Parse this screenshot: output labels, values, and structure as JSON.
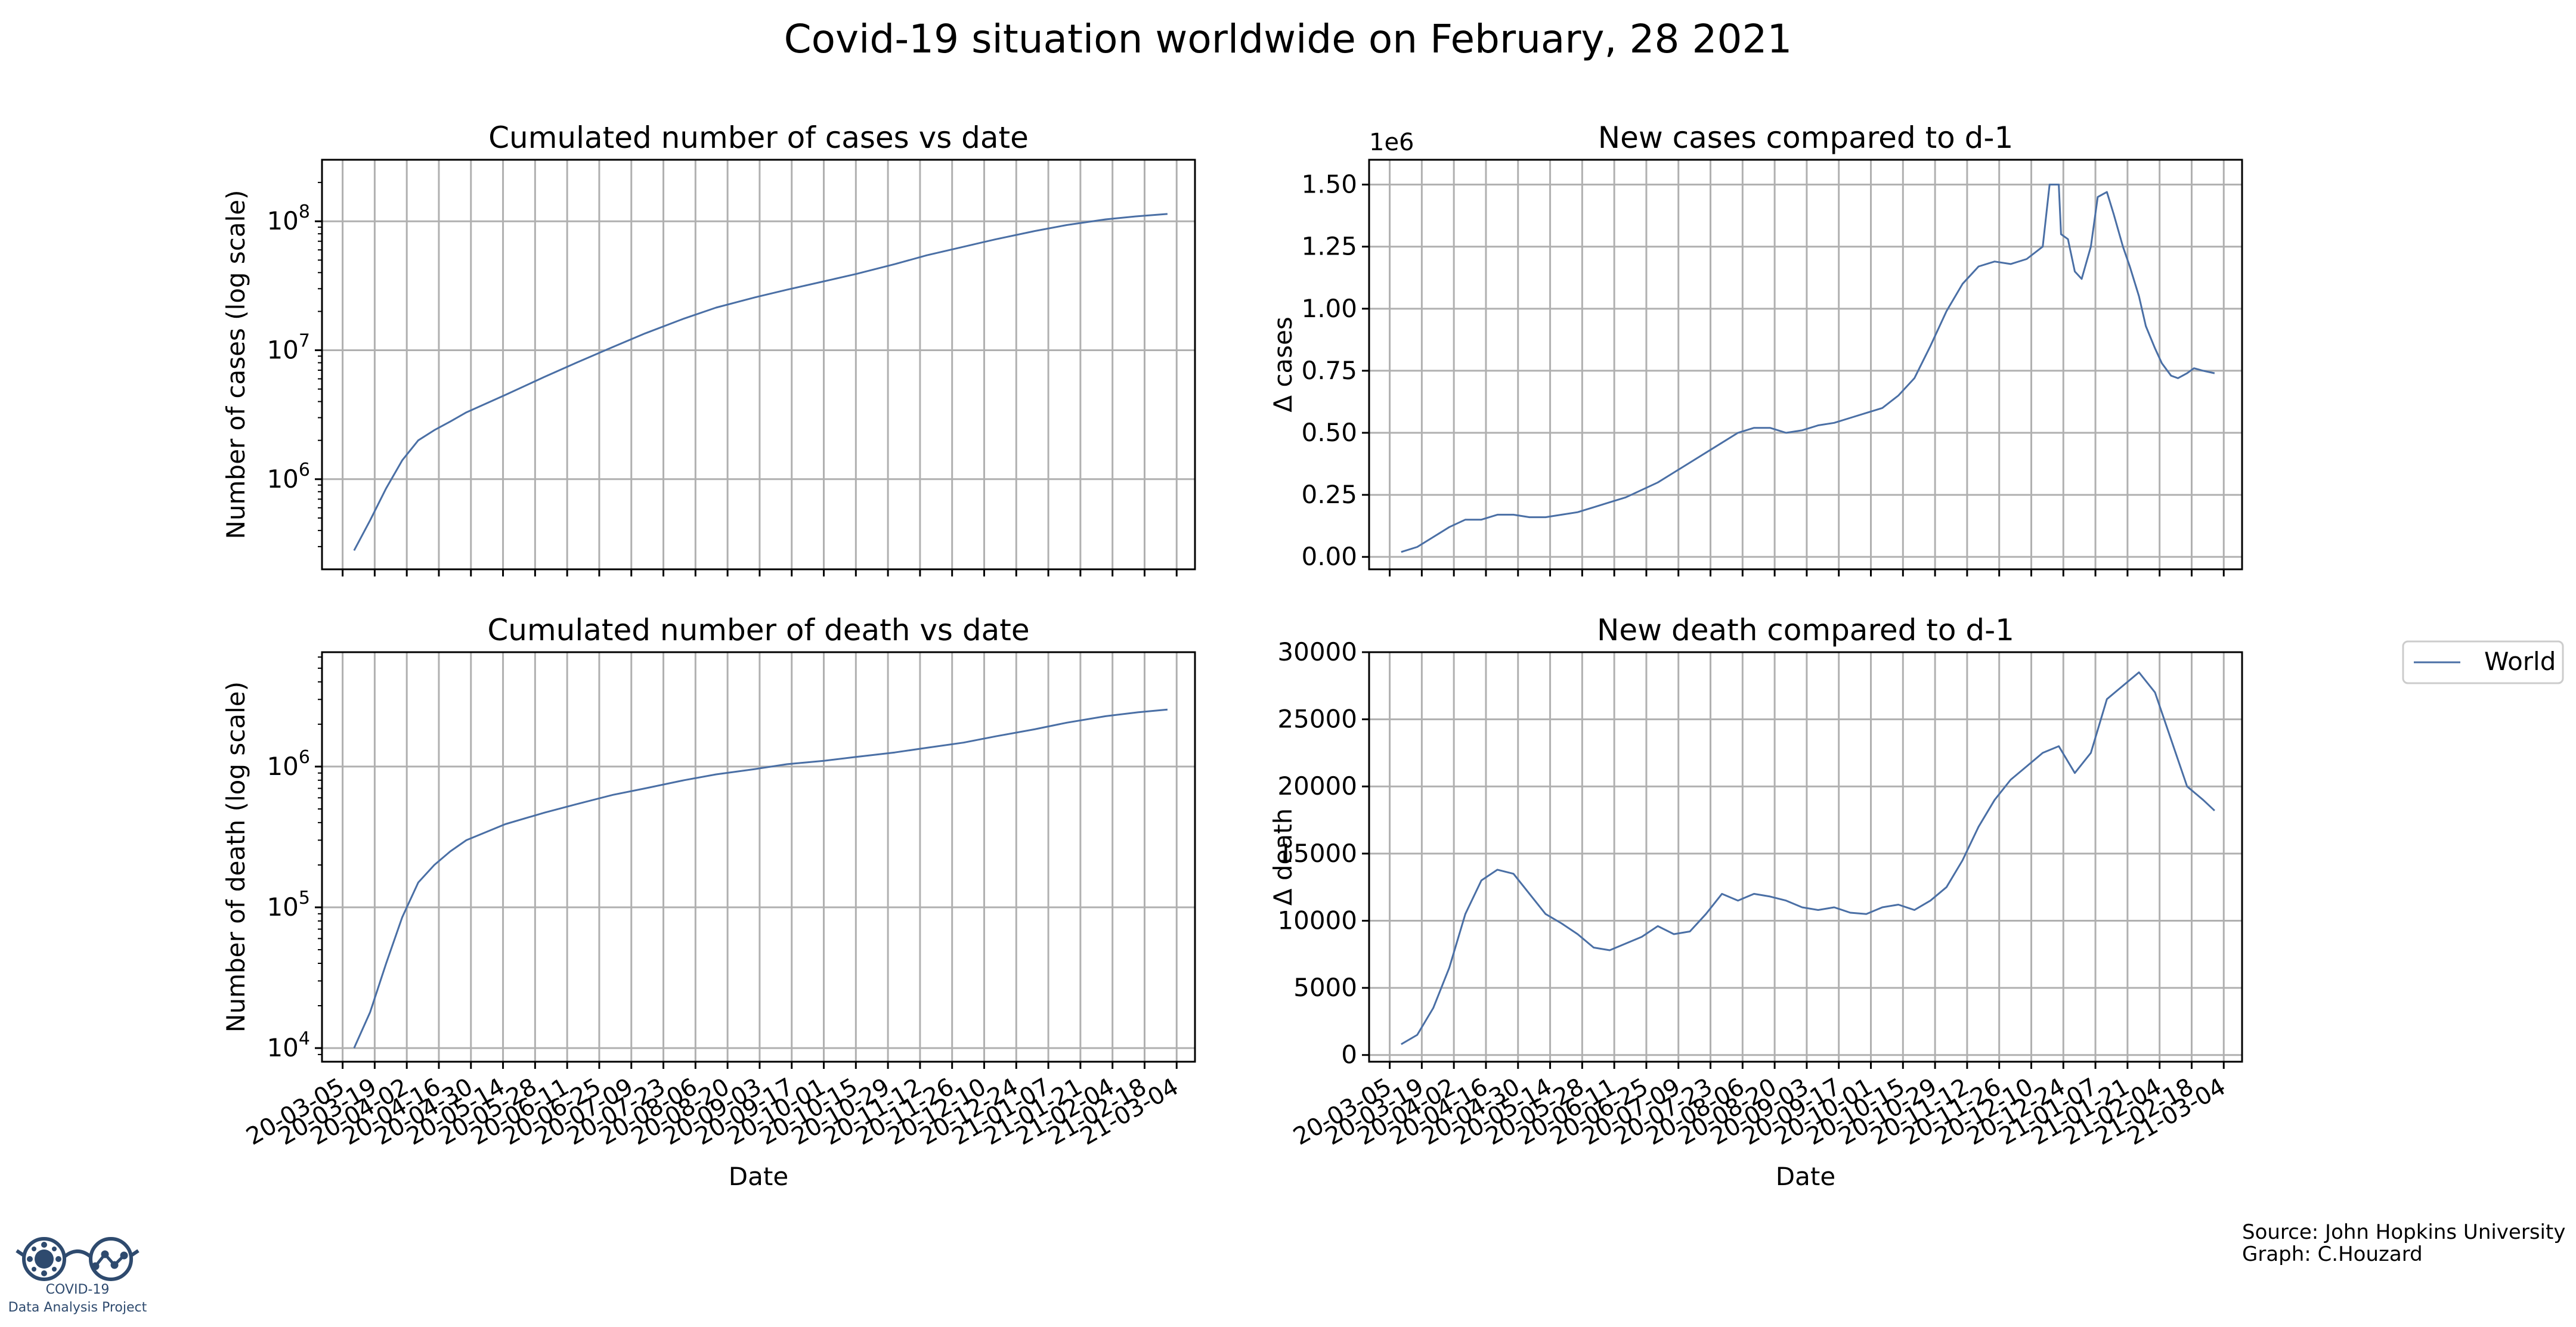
{
  "title": "Covid-19 situation worldwide on February, 28 2021",
  "legend": {
    "placement": "right-middle",
    "entries": [
      "World"
    ]
  },
  "colors": {
    "series": "#4a6fa5",
    "grid": "#b0b0b0",
    "axes": "#000000"
  },
  "source": {
    "line1": "Source: John Hopkins University",
    "line2": "Graph: C.Houzard"
  },
  "logo": {
    "line1": "COVID-19",
    "line2": "Data Analysis Project",
    "color": "#2e4a6e"
  },
  "date_ticks": [
    "20-03-05",
    "20-03-19",
    "20-04-02",
    "20-04-16",
    "20-04-30",
    "20-05-14",
    "20-05-28",
    "20-06-11",
    "20-06-25",
    "20-07-09",
    "20-07-23",
    "20-08-06",
    "20-08-20",
    "20-09-03",
    "20-09-17",
    "20-10-01",
    "20-10-15",
    "20-10-29",
    "20-11-12",
    "20-11-26",
    "20-12-10",
    "20-12-24",
    "21-01-07",
    "21-01-21",
    "21-02-04",
    "21-02-18",
    "21-03-04"
  ],
  "chart_data": [
    {
      "id": "cum-cases",
      "type": "line",
      "title": "Cumulated number of cases vs date",
      "xlabel": "",
      "ylabel": "Number of cases (log scale)",
      "yscale": "log",
      "ylim": [
        200000,
        300000000
      ],
      "yticks": [
        1000000,
        10000000,
        100000000
      ],
      "ytick_labels": [
        "10^6",
        "10^7",
        "10^8"
      ],
      "grid": true,
      "series": [
        {
          "name": "World",
          "x": [
            "20-03-10",
            "20-03-17",
            "20-03-24",
            "20-03-31",
            "20-04-07",
            "20-04-14",
            "20-04-21",
            "20-04-28",
            "20-05-15",
            "20-06-01",
            "20-06-15",
            "20-07-01",
            "20-07-15",
            "20-08-01",
            "20-08-15",
            "20-09-01",
            "20-09-15",
            "20-10-01",
            "20-10-15",
            "20-11-01",
            "20-11-15",
            "20-12-01",
            "20-12-15",
            "21-01-01",
            "21-01-15",
            "21-02-01",
            "21-02-15",
            "21-02-28"
          ],
          "y": [
            280000,
            480000,
            850000,
            1400000,
            2000000,
            2400000,
            2800000,
            3300000,
            4500000,
            6200000,
            8000000,
            10600000,
            13500000,
            17600000,
            21400000,
            25700000,
            29500000,
            34200000,
            39000000,
            46500000,
            54500000,
            63500000,
            72500000,
            84000000,
            93500000,
            103500000,
            109500000,
            114000000
          ]
        }
      ]
    },
    {
      "id": "new-cases",
      "type": "line",
      "title": "New cases compared to d-1",
      "xlabel": "",
      "ylabel": "Δ cases",
      "offset_label": "1e6",
      "ylim": [
        -0.05,
        1.6
      ],
      "yticks": [
        0.0,
        0.25,
        0.5,
        0.75,
        1.0,
        1.25,
        1.5
      ],
      "ytick_labels": [
        "0.00",
        "0.25",
        "0.50",
        "0.75",
        "1.00",
        "1.25",
        "1.50"
      ],
      "grid": true,
      "series": [
        {
          "name": "World",
          "x": [
            "20-03-10",
            "20-03-17",
            "20-03-24",
            "20-03-31",
            "20-04-07",
            "20-04-14",
            "20-04-21",
            "20-04-28",
            "20-05-05",
            "20-05-12",
            "20-05-19",
            "20-05-26",
            "20-06-02",
            "20-06-09",
            "20-06-16",
            "20-06-23",
            "20-06-30",
            "20-07-07",
            "20-07-14",
            "20-07-21",
            "20-07-28",
            "20-08-04",
            "20-08-11",
            "20-08-18",
            "20-08-25",
            "20-09-01",
            "20-09-08",
            "20-09-15",
            "20-09-22",
            "20-09-29",
            "20-10-06",
            "20-10-13",
            "20-10-20",
            "20-10-27",
            "20-11-03",
            "20-11-10",
            "20-11-17",
            "20-11-24",
            "20-12-01",
            "20-12-08",
            "20-12-15",
            "20-12-18",
            "20-12-19",
            "20-12-22",
            "20-12-23",
            "20-12-26",
            "20-12-29",
            "21-01-01",
            "21-01-05",
            "21-01-08",
            "21-01-12",
            "21-01-15",
            "21-01-19",
            "21-01-22",
            "21-01-26",
            "21-01-29",
            "21-02-02",
            "21-02-05",
            "21-02-09",
            "21-02-12",
            "21-02-16",
            "21-02-19",
            "21-02-23",
            "21-02-28"
          ],
          "y": [
            0.02,
            0.04,
            0.08,
            0.12,
            0.15,
            0.15,
            0.17,
            0.17,
            0.16,
            0.16,
            0.17,
            0.18,
            0.2,
            0.22,
            0.24,
            0.27,
            0.3,
            0.34,
            0.38,
            0.42,
            0.46,
            0.5,
            0.52,
            0.52,
            0.5,
            0.51,
            0.53,
            0.54,
            0.56,
            0.58,
            0.6,
            0.65,
            0.72,
            0.85,
            0.99,
            1.1,
            1.17,
            1.19,
            1.18,
            1.2,
            1.25,
            1.5,
            1.5,
            1.5,
            1.3,
            1.28,
            1.15,
            1.12,
            1.25,
            1.45,
            1.47,
            1.38,
            1.25,
            1.17,
            1.05,
            0.93,
            0.84,
            0.78,
            0.73,
            0.72,
            0.74,
            0.76,
            0.75,
            0.74
          ]
        }
      ]
    },
    {
      "id": "cum-death",
      "type": "line",
      "title": "Cumulated number of death vs date",
      "xlabel": "Date",
      "ylabel": "Number of death (log scale)",
      "yscale": "log",
      "ylim": [
        8000,
        6500000
      ],
      "yticks": [
        10000,
        100000,
        1000000
      ],
      "ytick_labels": [
        "10^4",
        "10^5",
        "10^6"
      ],
      "grid": true,
      "series": [
        {
          "name": "World",
          "x": [
            "20-03-10",
            "20-03-17",
            "20-03-24",
            "20-03-31",
            "20-04-07",
            "20-04-14",
            "20-04-21",
            "20-04-28",
            "20-05-15",
            "20-06-01",
            "20-06-15",
            "20-07-01",
            "20-07-15",
            "20-08-01",
            "20-08-15",
            "20-09-01",
            "20-09-15",
            "20-10-01",
            "20-10-15",
            "20-11-01",
            "20-11-15",
            "20-12-01",
            "20-12-15",
            "21-01-01",
            "21-01-15",
            "21-02-01",
            "21-02-15",
            "21-02-28"
          ],
          "y": [
            10000,
            18000,
            40000,
            85000,
            150000,
            200000,
            250000,
            300000,
            390000,
            470000,
            540000,
            630000,
            700000,
            800000,
            880000,
            960000,
            1040000,
            1100000,
            1170000,
            1260000,
            1360000,
            1480000,
            1640000,
            1840000,
            2050000,
            2280000,
            2430000,
            2540000
          ]
        }
      ]
    },
    {
      "id": "new-death",
      "type": "line",
      "title": "New death compared to d-1",
      "xlabel": "Date",
      "ylabel": "Δ death",
      "ylim": [
        -500,
        30000
      ],
      "yticks": [
        0,
        5000,
        10000,
        15000,
        20000,
        25000,
        30000
      ],
      "ytick_labels": [
        "0",
        "5000",
        "10000",
        "15000",
        "20000",
        "25000",
        "30000"
      ],
      "grid": true,
      "series": [
        {
          "name": "World",
          "x": [
            "20-03-10",
            "20-03-17",
            "20-03-24",
            "20-03-31",
            "20-04-07",
            "20-04-14",
            "20-04-21",
            "20-04-28",
            "20-05-05",
            "20-05-12",
            "20-05-19",
            "20-05-26",
            "20-06-02",
            "20-06-09",
            "20-06-16",
            "20-06-23",
            "20-06-30",
            "20-07-07",
            "20-07-14",
            "20-07-21",
            "20-07-28",
            "20-08-04",
            "20-08-11",
            "20-08-18",
            "20-08-25",
            "20-09-01",
            "20-09-08",
            "20-09-15",
            "20-09-22",
            "20-09-29",
            "20-10-06",
            "20-10-13",
            "20-10-20",
            "20-10-27",
            "20-11-03",
            "20-11-10",
            "20-11-17",
            "20-11-24",
            "20-12-01",
            "20-12-08",
            "20-12-15",
            "20-12-22",
            "20-12-29",
            "21-01-05",
            "21-01-12",
            "21-01-19",
            "21-01-26",
            "21-02-02",
            "21-02-09",
            "21-02-16",
            "21-02-23",
            "21-02-28"
          ],
          "y": [
            800,
            1500,
            3500,
            6500,
            10500,
            13000,
            13800,
            13500,
            12000,
            10500,
            9800,
            9000,
            8000,
            7800,
            8300,
            8800,
            9600,
            9000,
            9200,
            10500,
            12000,
            11500,
            12000,
            11800,
            11500,
            11000,
            10800,
            11000,
            10600,
            10500,
            11000,
            11200,
            10800,
            11500,
            12500,
            14500,
            17000,
            19000,
            20500,
            21500,
            22500,
            23000,
            21000,
            22500,
            26500,
            27500,
            28500,
            27000,
            23500,
            20000,
            19000,
            18200
          ]
        }
      ]
    }
  ]
}
